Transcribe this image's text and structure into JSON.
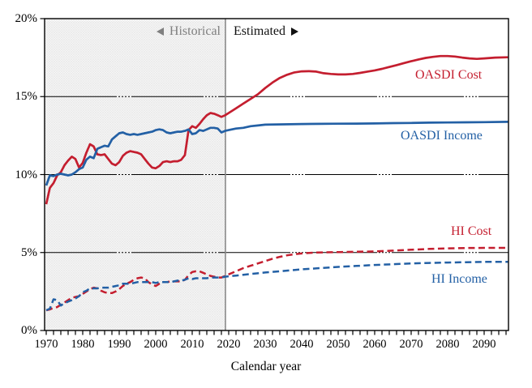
{
  "chart_data": {
    "type": "line",
    "title": "",
    "xlabel": "Calendar year",
    "ylabel": "",
    "xlim": [
      1969.6,
      2096.8
    ],
    "ylim": [
      0,
      20
    ],
    "x_ticks": [
      1970,
      1980,
      1990,
      2000,
      2010,
      2020,
      2030,
      2040,
      2050,
      2060,
      2070,
      2080,
      2090
    ],
    "y_ticks": [
      {
        "label": "0%",
        "value": 0
      },
      {
        "label": "5%",
        "value": 5
      },
      {
        "label": "10%",
        "value": 10
      },
      {
        "label": "15%",
        "value": 15
      },
      {
        "label": "20%",
        "value": 20
      }
    ],
    "grid_values": [
      5,
      10,
      15
    ],
    "legend_position": "inline-right",
    "annotations": {
      "historical_label": "Historical",
      "estimated_label": "Estimated",
      "divider_year": 2019,
      "historical_color": "#7f7f7f",
      "shading_fill": "#f4f4f4",
      "shading_dot_color": "#d9d9d9"
    },
    "series": [
      {
        "name": "OASDI Cost",
        "color": "#c41e2f",
        "style": "solid",
        "points": [
          [
            1970,
            8.1
          ],
          [
            1971,
            9.15
          ],
          [
            1972,
            9.45
          ],
          [
            1973,
            9.95
          ],
          [
            1974,
            10.15
          ],
          [
            1975,
            10.6
          ],
          [
            1976,
            10.9
          ],
          [
            1977,
            11.15
          ],
          [
            1978,
            11.0
          ],
          [
            1979,
            10.45
          ],
          [
            1980,
            10.75
          ],
          [
            1981,
            11.4
          ],
          [
            1982,
            11.95
          ],
          [
            1983,
            11.8
          ],
          [
            1984,
            11.3
          ],
          [
            1985,
            11.25
          ],
          [
            1986,
            11.3
          ],
          [
            1987,
            11.0
          ],
          [
            1988,
            10.7
          ],
          [
            1989,
            10.6
          ],
          [
            1990,
            10.8
          ],
          [
            1991,
            11.2
          ],
          [
            1992,
            11.4
          ],
          [
            1993,
            11.5
          ],
          [
            1994,
            11.45
          ],
          [
            1995,
            11.4
          ],
          [
            1996,
            11.3
          ],
          [
            1997,
            11.0
          ],
          [
            1998,
            10.7
          ],
          [
            1999,
            10.45
          ],
          [
            2000,
            10.4
          ],
          [
            2001,
            10.55
          ],
          [
            2002,
            10.8
          ],
          [
            2003,
            10.85
          ],
          [
            2004,
            10.8
          ],
          [
            2005,
            10.85
          ],
          [
            2006,
            10.85
          ],
          [
            2007,
            10.95
          ],
          [
            2008,
            11.25
          ],
          [
            2009,
            12.85
          ],
          [
            2010,
            13.1
          ],
          [
            2011,
            13.0
          ],
          [
            2012,
            13.25
          ],
          [
            2013,
            13.55
          ],
          [
            2014,
            13.8
          ],
          [
            2015,
            13.95
          ],
          [
            2016,
            13.9
          ],
          [
            2017,
            13.8
          ],
          [
            2018,
            13.7
          ],
          [
            2019,
            13.8
          ],
          [
            2020,
            13.95
          ],
          [
            2022,
            14.25
          ],
          [
            2024,
            14.55
          ],
          [
            2026,
            14.85
          ],
          [
            2028,
            15.15
          ],
          [
            2030,
            15.55
          ],
          [
            2032,
            15.9
          ],
          [
            2034,
            16.2
          ],
          [
            2036,
            16.4
          ],
          [
            2038,
            16.55
          ],
          [
            2040,
            16.62
          ],
          [
            2042,
            16.63
          ],
          [
            2044,
            16.6
          ],
          [
            2046,
            16.5
          ],
          [
            2048,
            16.45
          ],
          [
            2050,
            16.42
          ],
          [
            2052,
            16.42
          ],
          [
            2054,
            16.45
          ],
          [
            2056,
            16.52
          ],
          [
            2058,
            16.6
          ],
          [
            2060,
            16.68
          ],
          [
            2062,
            16.78
          ],
          [
            2064,
            16.9
          ],
          [
            2066,
            17.02
          ],
          [
            2068,
            17.15
          ],
          [
            2070,
            17.27
          ],
          [
            2072,
            17.38
          ],
          [
            2074,
            17.48
          ],
          [
            2076,
            17.55
          ],
          [
            2078,
            17.6
          ],
          [
            2080,
            17.6
          ],
          [
            2082,
            17.57
          ],
          [
            2084,
            17.5
          ],
          [
            2086,
            17.45
          ],
          [
            2088,
            17.42
          ],
          [
            2090,
            17.45
          ],
          [
            2093,
            17.5
          ],
          [
            2096.5,
            17.52
          ]
        ]
      },
      {
        "name": "OASDI Income",
        "color": "#2360a5",
        "style": "solid",
        "points": [
          [
            1970,
            9.3
          ],
          [
            1971,
            9.95
          ],
          [
            1972,
            9.9
          ],
          [
            1973,
            10.0
          ],
          [
            1974,
            10.05
          ],
          [
            1975,
            10.0
          ],
          [
            1976,
            9.95
          ],
          [
            1977,
            10.0
          ],
          [
            1978,
            10.15
          ],
          [
            1979,
            10.35
          ],
          [
            1980,
            10.45
          ],
          [
            1981,
            10.95
          ],
          [
            1982,
            11.15
          ],
          [
            1983,
            11.05
          ],
          [
            1984,
            11.65
          ],
          [
            1985,
            11.75
          ],
          [
            1986,
            11.85
          ],
          [
            1987,
            11.8
          ],
          [
            1988,
            12.25
          ],
          [
            1989,
            12.45
          ],
          [
            1990,
            12.65
          ],
          [
            1991,
            12.7
          ],
          [
            1992,
            12.6
          ],
          [
            1993,
            12.55
          ],
          [
            1994,
            12.6
          ],
          [
            1995,
            12.55
          ],
          [
            1996,
            12.6
          ],
          [
            1997,
            12.65
          ],
          [
            1998,
            12.7
          ],
          [
            1999,
            12.75
          ],
          [
            2000,
            12.85
          ],
          [
            2001,
            12.9
          ],
          [
            2002,
            12.85
          ],
          [
            2003,
            12.7
          ],
          [
            2004,
            12.65
          ],
          [
            2005,
            12.7
          ],
          [
            2006,
            12.75
          ],
          [
            2007,
            12.75
          ],
          [
            2008,
            12.8
          ],
          [
            2009,
            12.9
          ],
          [
            2010,
            12.6
          ],
          [
            2011,
            12.65
          ],
          [
            2012,
            12.85
          ],
          [
            2013,
            12.8
          ],
          [
            2014,
            12.9
          ],
          [
            2015,
            13.0
          ],
          [
            2016,
            13.0
          ],
          [
            2017,
            12.95
          ],
          [
            2018,
            12.7
          ],
          [
            2019,
            12.8
          ],
          [
            2020,
            12.85
          ],
          [
            2022,
            12.95
          ],
          [
            2024,
            13.0
          ],
          [
            2026,
            13.1
          ],
          [
            2028,
            13.15
          ],
          [
            2030,
            13.2
          ],
          [
            2035,
            13.22
          ],
          [
            2040,
            13.24
          ],
          [
            2045,
            13.25
          ],
          [
            2050,
            13.26
          ],
          [
            2055,
            13.27
          ],
          [
            2060,
            13.28
          ],
          [
            2065,
            13.3
          ],
          [
            2070,
            13.31
          ],
          [
            2075,
            13.33
          ],
          [
            2080,
            13.34
          ],
          [
            2085,
            13.35
          ],
          [
            2090,
            13.36
          ],
          [
            2096.5,
            13.38
          ]
        ]
      },
      {
        "name": "HI Cost",
        "color": "#c41e2f",
        "style": "dashed",
        "points": [
          [
            1970,
            1.3
          ],
          [
            1971,
            1.35
          ],
          [
            1972,
            1.45
          ],
          [
            1973,
            1.5
          ],
          [
            1974,
            1.65
          ],
          [
            1975,
            1.8
          ],
          [
            1976,
            1.95
          ],
          [
            1977,
            2.1
          ],
          [
            1978,
            2.15
          ],
          [
            1979,
            2.2
          ],
          [
            1980,
            2.35
          ],
          [
            1981,
            2.5
          ],
          [
            1982,
            2.65
          ],
          [
            1983,
            2.75
          ],
          [
            1984,
            2.7
          ],
          [
            1985,
            2.55
          ],
          [
            1986,
            2.45
          ],
          [
            1987,
            2.4
          ],
          [
            1988,
            2.4
          ],
          [
            1989,
            2.5
          ],
          [
            1990,
            2.65
          ],
          [
            1991,
            2.85
          ],
          [
            1992,
            3.0
          ],
          [
            1993,
            3.1
          ],
          [
            1994,
            3.25
          ],
          [
            1995,
            3.35
          ],
          [
            1996,
            3.4
          ],
          [
            1997,
            3.35
          ],
          [
            1998,
            3.1
          ],
          [
            1999,
            2.95
          ],
          [
            2000,
            2.85
          ],
          [
            2001,
            3.0
          ],
          [
            2002,
            3.1
          ],
          [
            2003,
            3.1
          ],
          [
            2004,
            3.15
          ],
          [
            2005,
            3.15
          ],
          [
            2006,
            3.15
          ],
          [
            2007,
            3.15
          ],
          [
            2008,
            3.25
          ],
          [
            2009,
            3.55
          ],
          [
            2010,
            3.75
          ],
          [
            2011,
            3.8
          ],
          [
            2012,
            3.8
          ],
          [
            2013,
            3.7
          ],
          [
            2014,
            3.6
          ],
          [
            2015,
            3.5
          ],
          [
            2016,
            3.45
          ],
          [
            2017,
            3.4
          ],
          [
            2018,
            3.4
          ],
          [
            2019,
            3.5
          ],
          [
            2020,
            3.6
          ],
          [
            2022,
            3.8
          ],
          [
            2024,
            4.0
          ],
          [
            2026,
            4.15
          ],
          [
            2028,
            4.3
          ],
          [
            2030,
            4.45
          ],
          [
            2032,
            4.6
          ],
          [
            2034,
            4.72
          ],
          [
            2036,
            4.82
          ],
          [
            2038,
            4.89
          ],
          [
            2040,
            4.94
          ],
          [
            2042,
            4.97
          ],
          [
            2044,
            5.0
          ],
          [
            2046,
            5.01
          ],
          [
            2048,
            5.02
          ],
          [
            2050,
            5.03
          ],
          [
            2055,
            5.05
          ],
          [
            2060,
            5.07
          ],
          [
            2065,
            5.12
          ],
          [
            2070,
            5.18
          ],
          [
            2075,
            5.23
          ],
          [
            2080,
            5.27
          ],
          [
            2085,
            5.29
          ],
          [
            2090,
            5.3
          ],
          [
            2096.5,
            5.3
          ]
        ]
      },
      {
        "name": "HI Income",
        "color": "#2360a5",
        "style": "dashed",
        "points": [
          [
            1970,
            1.3
          ],
          [
            1971,
            1.4
          ],
          [
            1972,
            2.0
          ],
          [
            1973,
            1.95
          ],
          [
            1974,
            1.6
          ],
          [
            1975,
            1.75
          ],
          [
            1976,
            1.85
          ],
          [
            1977,
            1.95
          ],
          [
            1978,
            2.05
          ],
          [
            1979,
            2.2
          ],
          [
            1980,
            2.45
          ],
          [
            1981,
            2.55
          ],
          [
            1982,
            2.7
          ],
          [
            1983,
            2.7
          ],
          [
            1984,
            2.7
          ],
          [
            1985,
            2.75
          ],
          [
            1986,
            2.75
          ],
          [
            1987,
            2.75
          ],
          [
            1988,
            2.8
          ],
          [
            1989,
            2.85
          ],
          [
            1990,
            2.9
          ],
          [
            1991,
            3.0
          ],
          [
            1992,
            3.0
          ],
          [
            1993,
            3.0
          ],
          [
            1994,
            3.05
          ],
          [
            1995,
            3.1
          ],
          [
            1996,
            3.1
          ],
          [
            1997,
            3.1
          ],
          [
            1998,
            3.1
          ],
          [
            1999,
            3.1
          ],
          [
            2000,
            3.05
          ],
          [
            2001,
            3.1
          ],
          [
            2002,
            3.1
          ],
          [
            2003,
            3.1
          ],
          [
            2004,
            3.1
          ],
          [
            2005,
            3.15
          ],
          [
            2006,
            3.2
          ],
          [
            2007,
            3.2
          ],
          [
            2008,
            3.25
          ],
          [
            2009,
            3.35
          ],
          [
            2010,
            3.3
          ],
          [
            2011,
            3.35
          ],
          [
            2012,
            3.35
          ],
          [
            2013,
            3.35
          ],
          [
            2014,
            3.35
          ],
          [
            2015,
            3.4
          ],
          [
            2016,
            3.4
          ],
          [
            2017,
            3.4
          ],
          [
            2018,
            3.4
          ],
          [
            2019,
            3.45
          ],
          [
            2022,
            3.52
          ],
          [
            2025,
            3.6
          ],
          [
            2030,
            3.72
          ],
          [
            2035,
            3.82
          ],
          [
            2040,
            3.92
          ],
          [
            2045,
            4.0
          ],
          [
            2050,
            4.08
          ],
          [
            2055,
            4.14
          ],
          [
            2060,
            4.2
          ],
          [
            2065,
            4.25
          ],
          [
            2070,
            4.3
          ],
          [
            2075,
            4.33
          ],
          [
            2080,
            4.36
          ],
          [
            2085,
            4.38
          ],
          [
            2090,
            4.4
          ],
          [
            2096.5,
            4.4
          ]
        ]
      }
    ]
  }
}
